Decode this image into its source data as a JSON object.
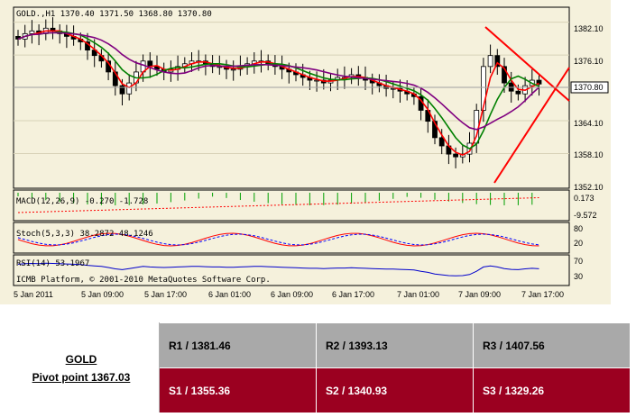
{
  "chart": {
    "header": "GOLD.,H1  1370.40  1371.50  1368.80  1370.80",
    "price_ticks": [
      "1382.10",
      "1376.10",
      "1364.10",
      "1358.10",
      "1352.10"
    ],
    "current_price": "1370.80",
    "macd_label": "MACD(12,26,9) -0.270 -1.728",
    "macd_ticks": [
      "0.173",
      "-9.572"
    ],
    "stoch_label": "Stoch(5,3,3) 38.2872 48.1246",
    "stoch_ticks": [
      "80",
      "20"
    ],
    "rsi_label": "RSI(14) 53.1967",
    "rsi_ticks": [
      "70",
      "30"
    ],
    "watermark": "ICMB Platform, © 2001-2010 MetaQuotes Software Corp.",
    "time_labels": [
      "5 Jan 2011",
      "5 Jan 09:00",
      "5 Jan 17:00",
      "6 Jan 01:00",
      "6 Jan 09:00",
      "6 Jan 17:00",
      "7 Jan 01:00",
      "7 Jan 09:00",
      "7 Jan 17:00"
    ],
    "colors": {
      "bull_candle": "#ffffff",
      "bear_candle": "#000000",
      "ma_fast": "#ff0000",
      "ma_mid": "#008000",
      "ma_slow": "#800080",
      "trendline": "#ff0000",
      "macd_hist": "#00a000",
      "stoch_main": "#ff0000",
      "stoch_signal": "#0000ff",
      "rsi": "#0000cc"
    }
  },
  "pivot_table": {
    "symbol": "GOLD",
    "pivot": "Pivot point 1367.03",
    "r1": "R1 / 1381.46",
    "r2": "R2 / 1393.13",
    "r3": "R3 / 1407.56",
    "s1": "S1 / 1355.36",
    "s2": "S2 / 1340.93",
    "s3": "S3 / 1329.26"
  },
  "chart_data": {
    "type": "candlestick",
    "title": "GOLD.,H1",
    "ohlc_last": {
      "open": 1370.4,
      "high": 1371.5,
      "low": 1368.8,
      "close": 1370.8
    },
    "ylim": [
      1352.1,
      1384.5
    ],
    "close_series": [
      1379,
      1380,
      1380.5,
      1380,
      1381,
      1380.5,
      1380,
      1379.5,
      1379,
      1378.5,
      1377,
      1376,
      1375,
      1373,
      1370.5,
      1369,
      1371,
      1373,
      1375,
      1374,
      1373.5,
      1373,
      1373.5,
      1374,
      1374.5,
      1375,
      1375,
      1374.5,
      1374,
      1374,
      1373.5,
      1373.5,
      1374,
      1374.5,
      1375,
      1375,
      1374.5,
      1374,
      1373.5,
      1373,
      1372.5,
      1372,
      1371.5,
      1371.5,
      1371,
      1371.5,
      1372,
      1372,
      1372.5,
      1372,
      1371.5,
      1371,
      1370.5,
      1370,
      1370,
      1369.5,
      1369,
      1368.5,
      1366,
      1364,
      1361,
      1359.5,
      1358,
      1357.5,
      1358,
      1360,
      1366,
      1374,
      1376,
      1374,
      1371,
      1369.5,
      1369,
      1370.5,
      1371.5,
      1370.8
    ]
  }
}
